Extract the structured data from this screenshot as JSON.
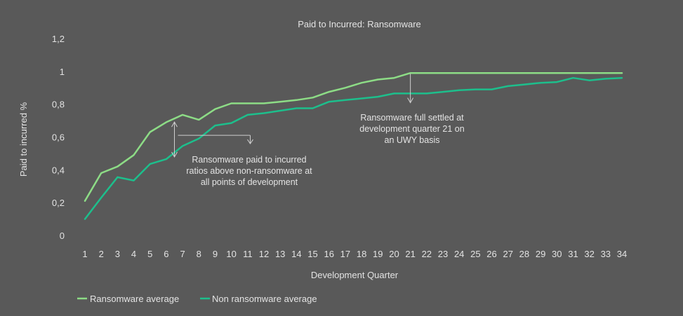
{
  "chart_data": {
    "type": "line",
    "title": "Paid to Incurred: Ransomware",
    "xlabel": "Development Quarter",
    "ylabel": "Paid to incurred %",
    "ylim": [
      0,
      1.2
    ],
    "y_ticks": [
      "0",
      "0,2",
      "0,4",
      "0,6",
      "0,8",
      "1",
      "1,2"
    ],
    "y_tick_values": [
      0,
      0.2,
      0.4,
      0.6,
      0.8,
      1.0,
      1.2
    ],
    "x": [
      1,
      2,
      3,
      4,
      5,
      6,
      7,
      8,
      9,
      10,
      11,
      12,
      13,
      14,
      15,
      16,
      17,
      18,
      19,
      20,
      21,
      22,
      23,
      24,
      25,
      26,
      27,
      28,
      29,
      30,
      31,
      32,
      33,
      34
    ],
    "x_ticks": [
      "1",
      "2",
      "3",
      "4",
      "5",
      "6",
      "7",
      "8",
      "9",
      "10",
      "11",
      "12",
      "13",
      "14",
      "15",
      "16",
      "17",
      "18",
      "19",
      "20",
      "21",
      "22",
      "23",
      "24",
      "25",
      "26",
      "27",
      "28",
      "29",
      "30",
      "31",
      "32",
      "33",
      "34"
    ],
    "series": [
      {
        "name": "Ransomware average",
        "color": "#8ddc86",
        "values": [
          0.21,
          0.38,
          0.42,
          0.49,
          0.63,
          0.69,
          0.735,
          0.705,
          0.77,
          0.805,
          0.805,
          0.805,
          0.815,
          0.825,
          0.84,
          0.875,
          0.9,
          0.93,
          0.95,
          0.96,
          0.99,
          0.99,
          0.99,
          0.99,
          0.99,
          0.99,
          0.99,
          0.99,
          0.99,
          0.99,
          0.99,
          0.99,
          0.99,
          0.99
        ]
      },
      {
        "name": "Non ransomware average",
        "color": "#1dbf8c",
        "values": [
          0.1,
          0.23,
          0.355,
          0.335,
          0.435,
          0.465,
          0.545,
          0.59,
          0.67,
          0.685,
          0.735,
          0.745,
          0.76,
          0.775,
          0.775,
          0.815,
          0.825,
          0.835,
          0.845,
          0.865,
          0.865,
          0.865,
          0.875,
          0.885,
          0.89,
          0.89,
          0.91,
          0.92,
          0.93,
          0.935,
          0.96,
          0.945,
          0.955,
          0.96
        ]
      }
    ],
    "annotations": [
      {
        "lines": [
          "Ransomware paid to incurred",
          "ratios above non-ransomware at",
          "all points of development"
        ],
        "x": 6.5,
        "y_from": 0.7,
        "y_to": 0.47
      },
      {
        "lines": [
          "Ransomware full settled at",
          "development quarter 21 on",
          "an UWY basis"
        ],
        "x": 21,
        "y_from": 0.985,
        "y_to": 0.8
      }
    ],
    "grid": false,
    "legend_position": "bottom-left"
  }
}
